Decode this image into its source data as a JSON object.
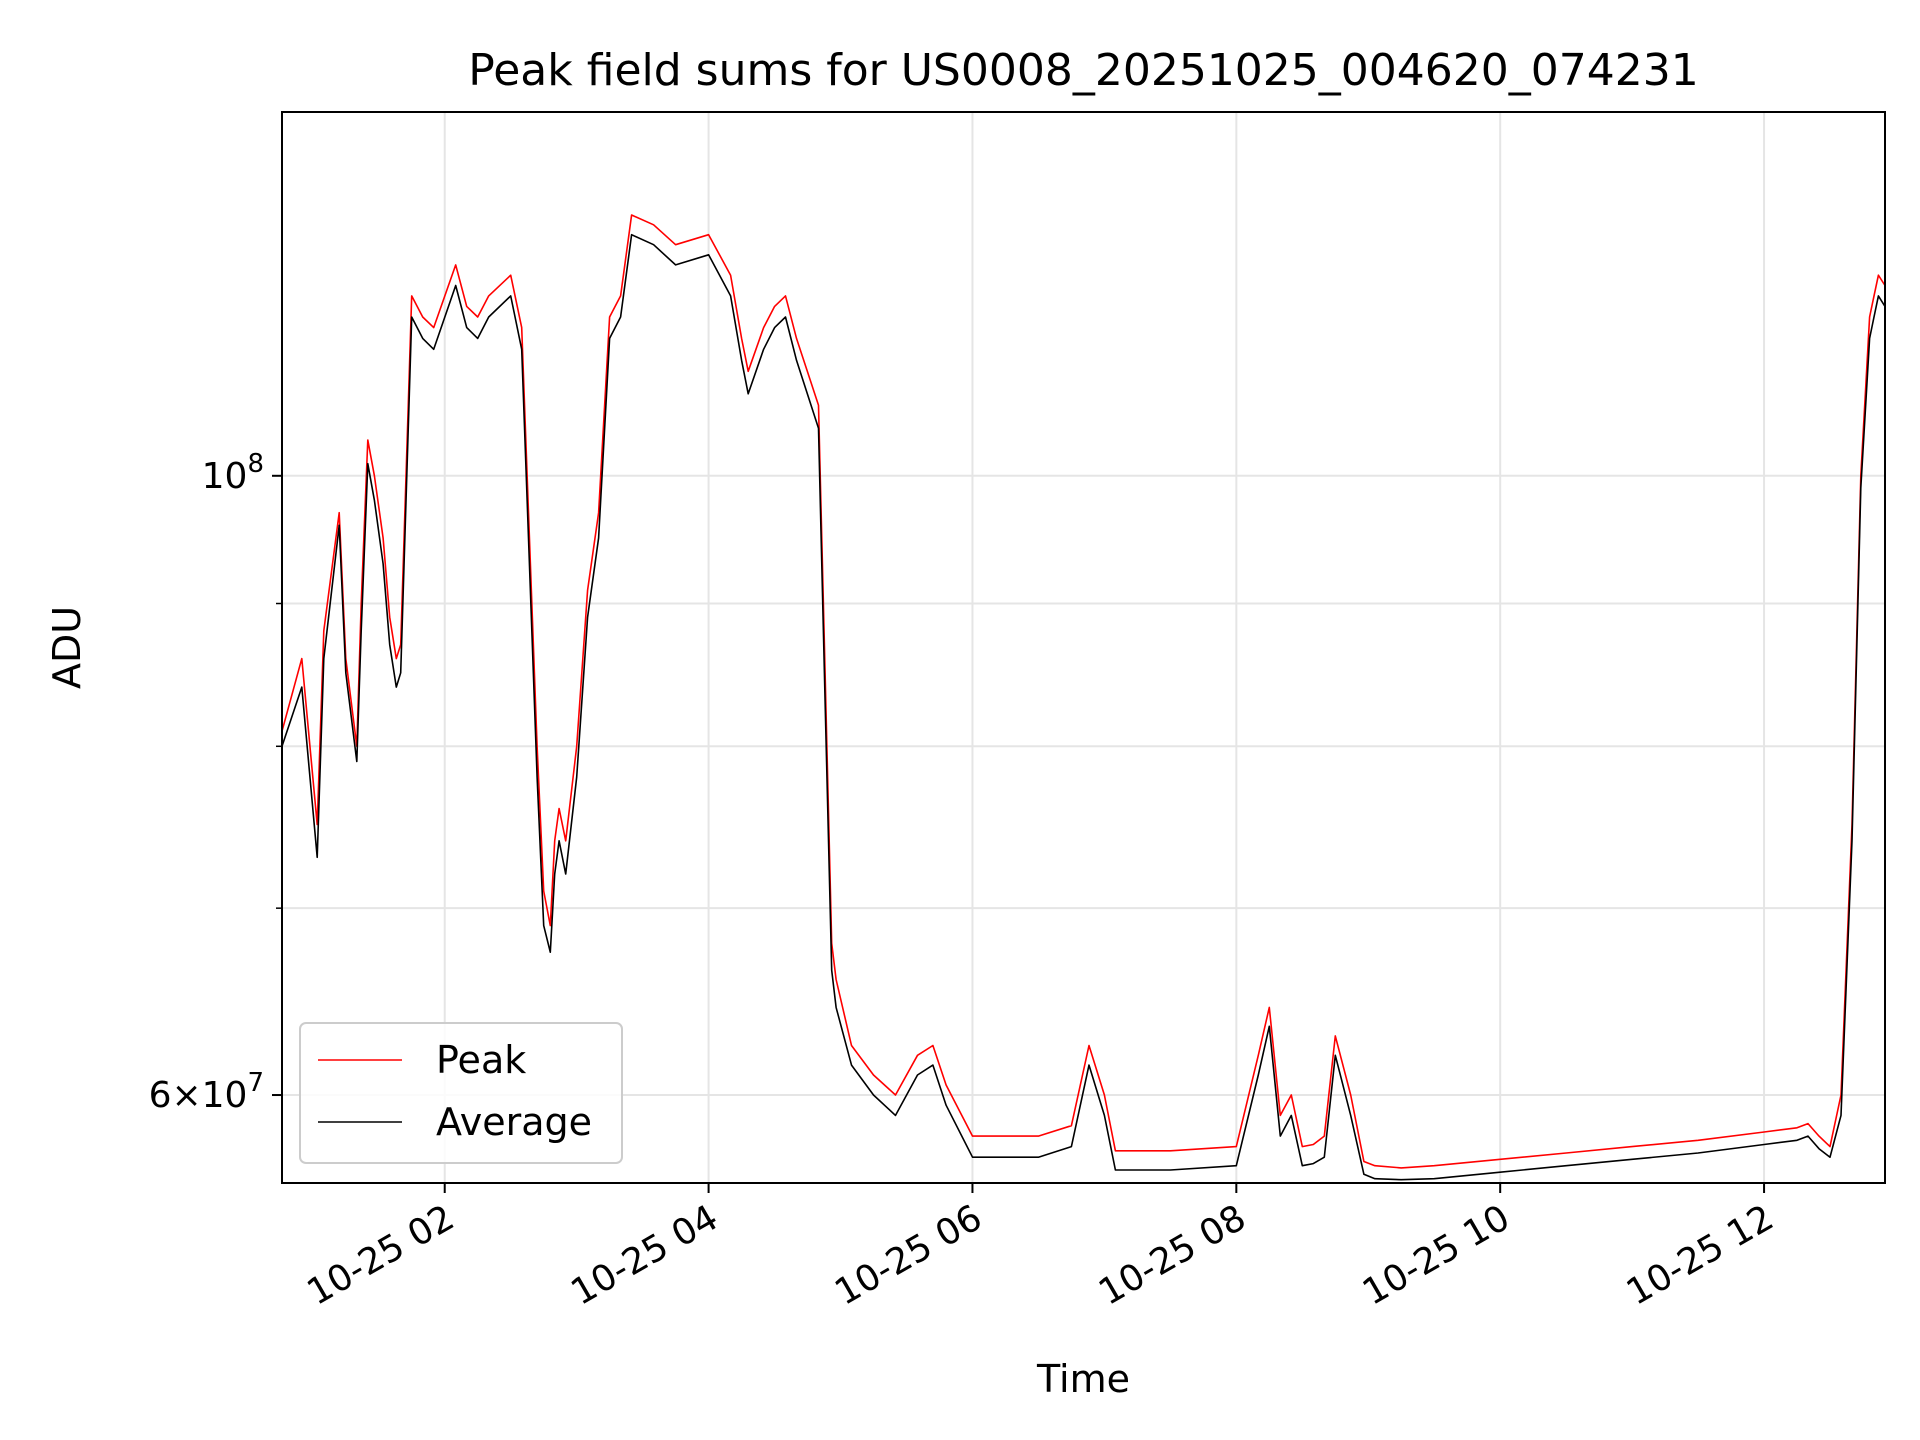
{
  "chart_data": {
    "type": "line",
    "title": "Peak field sums for US0008_20251025_004620_074231",
    "xlabel": "Time",
    "ylabel": "ADU",
    "yscale": "log",
    "xlim": [
      "2025-10-25 00:46",
      "2025-10-25 12:55"
    ],
    "ylim": [
      55800000,
      135000000
    ],
    "grid": true,
    "legend": "lower-left",
    "x_ticks": [
      "10-25 02",
      "10-25 04",
      "10-25 06",
      "10-25 08",
      "10-25 10",
      "10-25 12"
    ],
    "y_tick_major": [
      {
        "value": 100000000,
        "base": "10",
        "exp": "8"
      },
      {
        "value": 60000000,
        "coef": "6",
        "times": "×",
        "base": "10",
        "exp": "7"
      }
    ],
    "y_minor_values": [
      70000000,
      80000000,
      90000000
    ],
    "colors": {
      "peak": "#ff0000",
      "average": "#000000"
    },
    "series": [
      {
        "name": "Peak",
        "color": "#ff0000",
        "x": [
          "2025-10-25 00:46",
          "2025-10-25 00:55",
          "2025-10-25 01:02",
          "2025-10-25 01:05",
          "2025-10-25 01:12",
          "2025-10-25 01:15",
          "2025-10-25 01:20",
          "2025-10-25 01:22",
          "2025-10-25 01:25",
          "2025-10-25 01:28",
          "2025-10-25 01:32",
          "2025-10-25 01:35",
          "2025-10-25 01:38",
          "2025-10-25 01:40",
          "2025-10-25 01:45",
          "2025-10-25 01:50",
          "2025-10-25 01:55",
          "2025-10-25 02:05",
          "2025-10-25 02:10",
          "2025-10-25 02:15",
          "2025-10-25 02:20",
          "2025-10-25 02:30",
          "2025-10-25 02:35",
          "2025-10-25 02:42",
          "2025-10-25 02:45",
          "2025-10-25 02:48",
          "2025-10-25 02:50",
          "2025-10-25 02:52",
          "2025-10-25 02:55",
          "2025-10-25 03:00",
          "2025-10-25 03:05",
          "2025-10-25 03:10",
          "2025-10-25 03:15",
          "2025-10-25 03:20",
          "2025-10-25 03:25",
          "2025-10-25 03:35",
          "2025-10-25 03:45",
          "2025-10-25 04:00",
          "2025-10-25 04:10",
          "2025-10-25 04:15",
          "2025-10-25 04:18",
          "2025-10-25 04:25",
          "2025-10-25 04:30",
          "2025-10-25 04:35",
          "2025-10-25 04:40",
          "2025-10-25 04:50",
          "2025-10-25 04:53",
          "2025-10-25 04:56",
          "2025-10-25 04:58",
          "2025-10-25 05:05",
          "2025-10-25 05:15",
          "2025-10-25 05:25",
          "2025-10-25 05:35",
          "2025-10-25 05:42",
          "2025-10-25 05:48",
          "2025-10-25 06:00",
          "2025-10-25 06:30",
          "2025-10-25 06:45",
          "2025-10-25 06:53",
          "2025-10-25 07:00",
          "2025-10-25 07:05",
          "2025-10-25 07:30",
          "2025-10-25 08:00",
          "2025-10-25 08:10",
          "2025-10-25 08:15",
          "2025-10-25 08:20",
          "2025-10-25 08:25",
          "2025-10-25 08:30",
          "2025-10-25 08:35",
          "2025-10-25 08:40",
          "2025-10-25 08:45",
          "2025-10-25 08:52",
          "2025-10-25 08:58",
          "2025-10-25 09:03",
          "2025-10-25 09:15",
          "2025-10-25 09:30",
          "2025-10-25 10:00",
          "2025-10-25 10:30",
          "2025-10-25 11:00",
          "2025-10-25 11:30",
          "2025-10-25 12:00",
          "2025-10-25 12:15",
          "2025-10-25 12:20",
          "2025-10-25 12:25",
          "2025-10-25 12:30",
          "2025-10-25 12:35",
          "2025-10-25 12:40",
          "2025-10-25 12:44",
          "2025-10-25 12:48",
          "2025-10-25 12:50",
          "2025-10-25 12:52",
          "2025-10-25 12:55"
        ],
        "y": [
          81000000,
          86000000,
          75000000,
          88000000,
          97000000,
          86000000,
          80000000,
          90000000,
          103000000,
          100000000,
          95000000,
          89000000,
          86000000,
          87000000,
          116000000,
          114000000,
          113000000,
          119000000,
          115000000,
          114000000,
          116000000,
          118000000,
          113000000,
          80000000,
          71000000,
          69000000,
          74000000,
          76000000,
          74000000,
          80000000,
          91000000,
          97000000,
          114000000,
          116000000,
          124000000,
          123000000,
          121000000,
          122000000,
          118000000,
          112000000,
          109000000,
          113000000,
          115000000,
          116000000,
          112000000,
          106000000,
          85000000,
          68000000,
          66000000,
          62500000,
          61000000,
          60000000,
          62000000,
          62500000,
          60500000,
          58000000,
          58000000,
          58500000,
          62500000,
          60000000,
          57300000,
          57300000,
          57500000,
          62000000,
          64500000,
          59000000,
          60000000,
          57500000,
          57600000,
          58000000,
          63000000,
          60000000,
          56800000,
          56600000,
          56500000,
          56600000,
          56900000,
          57200000,
          57500000,
          57800000,
          58200000,
          58400000,
          58600000,
          58000000,
          57500000,
          60000000,
          75000000,
          100000000,
          114000000,
          116000000,
          118000000,
          117000000
        ]
      },
      {
        "name": "Average",
        "color": "#000000",
        "x": [
          "2025-10-25 00:46",
          "2025-10-25 00:55",
          "2025-10-25 01:02",
          "2025-10-25 01:05",
          "2025-10-25 01:12",
          "2025-10-25 01:15",
          "2025-10-25 01:20",
          "2025-10-25 01:22",
          "2025-10-25 01:25",
          "2025-10-25 01:28",
          "2025-10-25 01:32",
          "2025-10-25 01:35",
          "2025-10-25 01:38",
          "2025-10-25 01:40",
          "2025-10-25 01:45",
          "2025-10-25 01:50",
          "2025-10-25 01:55",
          "2025-10-25 02:05",
          "2025-10-25 02:10",
          "2025-10-25 02:15",
          "2025-10-25 02:20",
          "2025-10-25 02:30",
          "2025-10-25 02:35",
          "2025-10-25 02:42",
          "2025-10-25 02:45",
          "2025-10-25 02:48",
          "2025-10-25 02:50",
          "2025-10-25 02:52",
          "2025-10-25 02:55",
          "2025-10-25 03:00",
          "2025-10-25 03:05",
          "2025-10-25 03:10",
          "2025-10-25 03:15",
          "2025-10-25 03:20",
          "2025-10-25 03:25",
          "2025-10-25 03:35",
          "2025-10-25 03:45",
          "2025-10-25 04:00",
          "2025-10-25 04:10",
          "2025-10-25 04:15",
          "2025-10-25 04:18",
          "2025-10-25 04:25",
          "2025-10-25 04:30",
          "2025-10-25 04:35",
          "2025-10-25 04:40",
          "2025-10-25 04:50",
          "2025-10-25 04:53",
          "2025-10-25 04:56",
          "2025-10-25 04:58",
          "2025-10-25 05:05",
          "2025-10-25 05:15",
          "2025-10-25 05:25",
          "2025-10-25 05:35",
          "2025-10-25 05:42",
          "2025-10-25 05:48",
          "2025-10-25 06:00",
          "2025-10-25 06:30",
          "2025-10-25 06:45",
          "2025-10-25 06:53",
          "2025-10-25 07:00",
          "2025-10-25 07:05",
          "2025-10-25 07:30",
          "2025-10-25 08:00",
          "2025-10-25 08:10",
          "2025-10-25 08:15",
          "2025-10-25 08:20",
          "2025-10-25 08:25",
          "2025-10-25 08:30",
          "2025-10-25 08:35",
          "2025-10-25 08:40",
          "2025-10-25 08:45",
          "2025-10-25 08:52",
          "2025-10-25 08:58",
          "2025-10-25 09:03",
          "2025-10-25 09:15",
          "2025-10-25 09:30",
          "2025-10-25 10:00",
          "2025-10-25 10:30",
          "2025-10-25 11:00",
          "2025-10-25 11:30",
          "2025-10-25 12:00",
          "2025-10-25 12:15",
          "2025-10-25 12:20",
          "2025-10-25 12:25",
          "2025-10-25 12:30",
          "2025-10-25 12:35",
          "2025-10-25 12:40",
          "2025-10-25 12:44",
          "2025-10-25 12:48",
          "2025-10-25 12:50",
          "2025-10-25 12:52",
          "2025-10-25 12:55"
        ],
        "y": [
          80000000,
          84000000,
          73000000,
          86000000,
          96000000,
          85000000,
          79000000,
          88000000,
          101000000,
          98000000,
          93000000,
          87000000,
          84000000,
          85000000,
          114000000,
          112000000,
          111000000,
          117000000,
          113000000,
          112000000,
          114000000,
          116000000,
          111000000,
          78000000,
          69000000,
          67500000,
          72000000,
          74000000,
          72000000,
          78000000,
          89000000,
          95000000,
          112000000,
          114000000,
          122000000,
          121000000,
          119000000,
          120000000,
          116000000,
          110000000,
          107000000,
          111000000,
          113000000,
          114000000,
          110000000,
          104000000,
          83000000,
          66500000,
          64500000,
          61500000,
          60000000,
          59000000,
          61000000,
          61500000,
          59500000,
          57000000,
          57000000,
          57500000,
          61500000,
          59000000,
          56400000,
          56400000,
          56600000,
          61000000,
          63500000,
          58000000,
          59000000,
          56600000,
          56700000,
          57000000,
          62000000,
          59000000,
          56200000,
          56000000,
          55950000,
          56000000,
          56300000,
          56600000,
          56900000,
          57200000,
          57600000,
          57800000,
          58000000,
          57400000,
          57000000,
          59000000,
          74000000,
          99000000,
          112000000,
          114000000,
          116000000,
          115000000
        ]
      }
    ]
  }
}
